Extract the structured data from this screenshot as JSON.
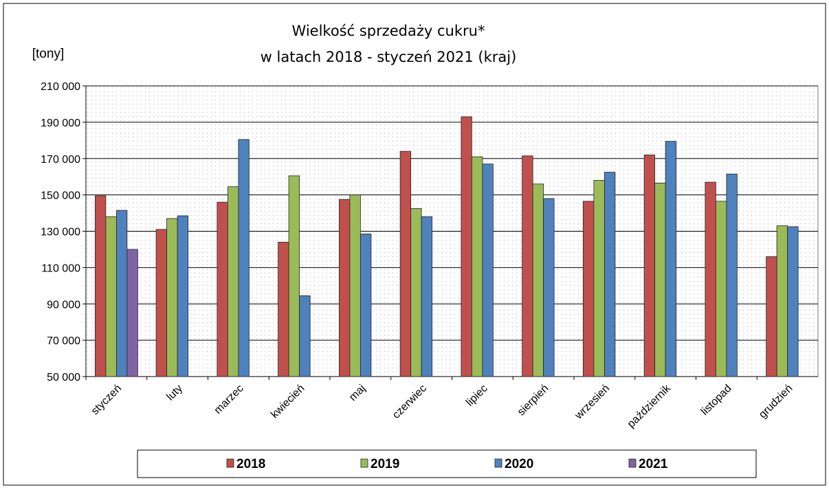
{
  "chart_data": {
    "type": "bar",
    "title": "Wielkość sprzedaży cukru*",
    "subtitle": "w latach 2018 - styczeń 2021 (kraj)",
    "y_label": "[tony]",
    "categories": [
      "styczeń",
      "luty",
      "marzec",
      "kwiecień",
      "maj",
      "czerwiec",
      "lipiec",
      "sierpień",
      "wrzesień",
      "październik",
      "listopad",
      "grudzień"
    ],
    "series": [
      {
        "name": "2018",
        "color": "#c0504d",
        "values": [
          149500,
          131000,
          146000,
          124000,
          147500,
          174000,
          193000,
          171500,
          146500,
          172000,
          157000,
          116000
        ]
      },
      {
        "name": "2019",
        "color": "#9bbb59",
        "values": [
          138000,
          137000,
          154500,
          160500,
          150000,
          142500,
          171000,
          156000,
          158000,
          156500,
          146500,
          133000
        ]
      },
      {
        "name": "2020",
        "color": "#4f81bd",
        "values": [
          141500,
          138500,
          180500,
          94500,
          128500,
          138000,
          167000,
          148000,
          162500,
          179500,
          161500,
          132500
        ]
      },
      {
        "name": "2021",
        "color": "#8064a2",
        "values": [
          120000,
          null,
          null,
          null,
          null,
          null,
          null,
          null,
          null,
          null,
          null,
          null
        ]
      }
    ],
    "ylim": [
      50000,
      210000
    ],
    "yticks": [
      {
        "value": 50000,
        "label": "50 000"
      },
      {
        "value": 70000,
        "label": "70 000"
      },
      {
        "value": 90000,
        "label": "90 000"
      },
      {
        "value": 110000,
        "label": "110 000"
      },
      {
        "value": 130000,
        "label": "130 000"
      },
      {
        "value": 150000,
        "label": "150 000"
      },
      {
        "value": 170000,
        "label": "170 000"
      },
      {
        "value": 190000,
        "label": "190 000"
      },
      {
        "value": 210000,
        "label": "210 000"
      }
    ],
    "grid": true,
    "legend": "bottom"
  }
}
